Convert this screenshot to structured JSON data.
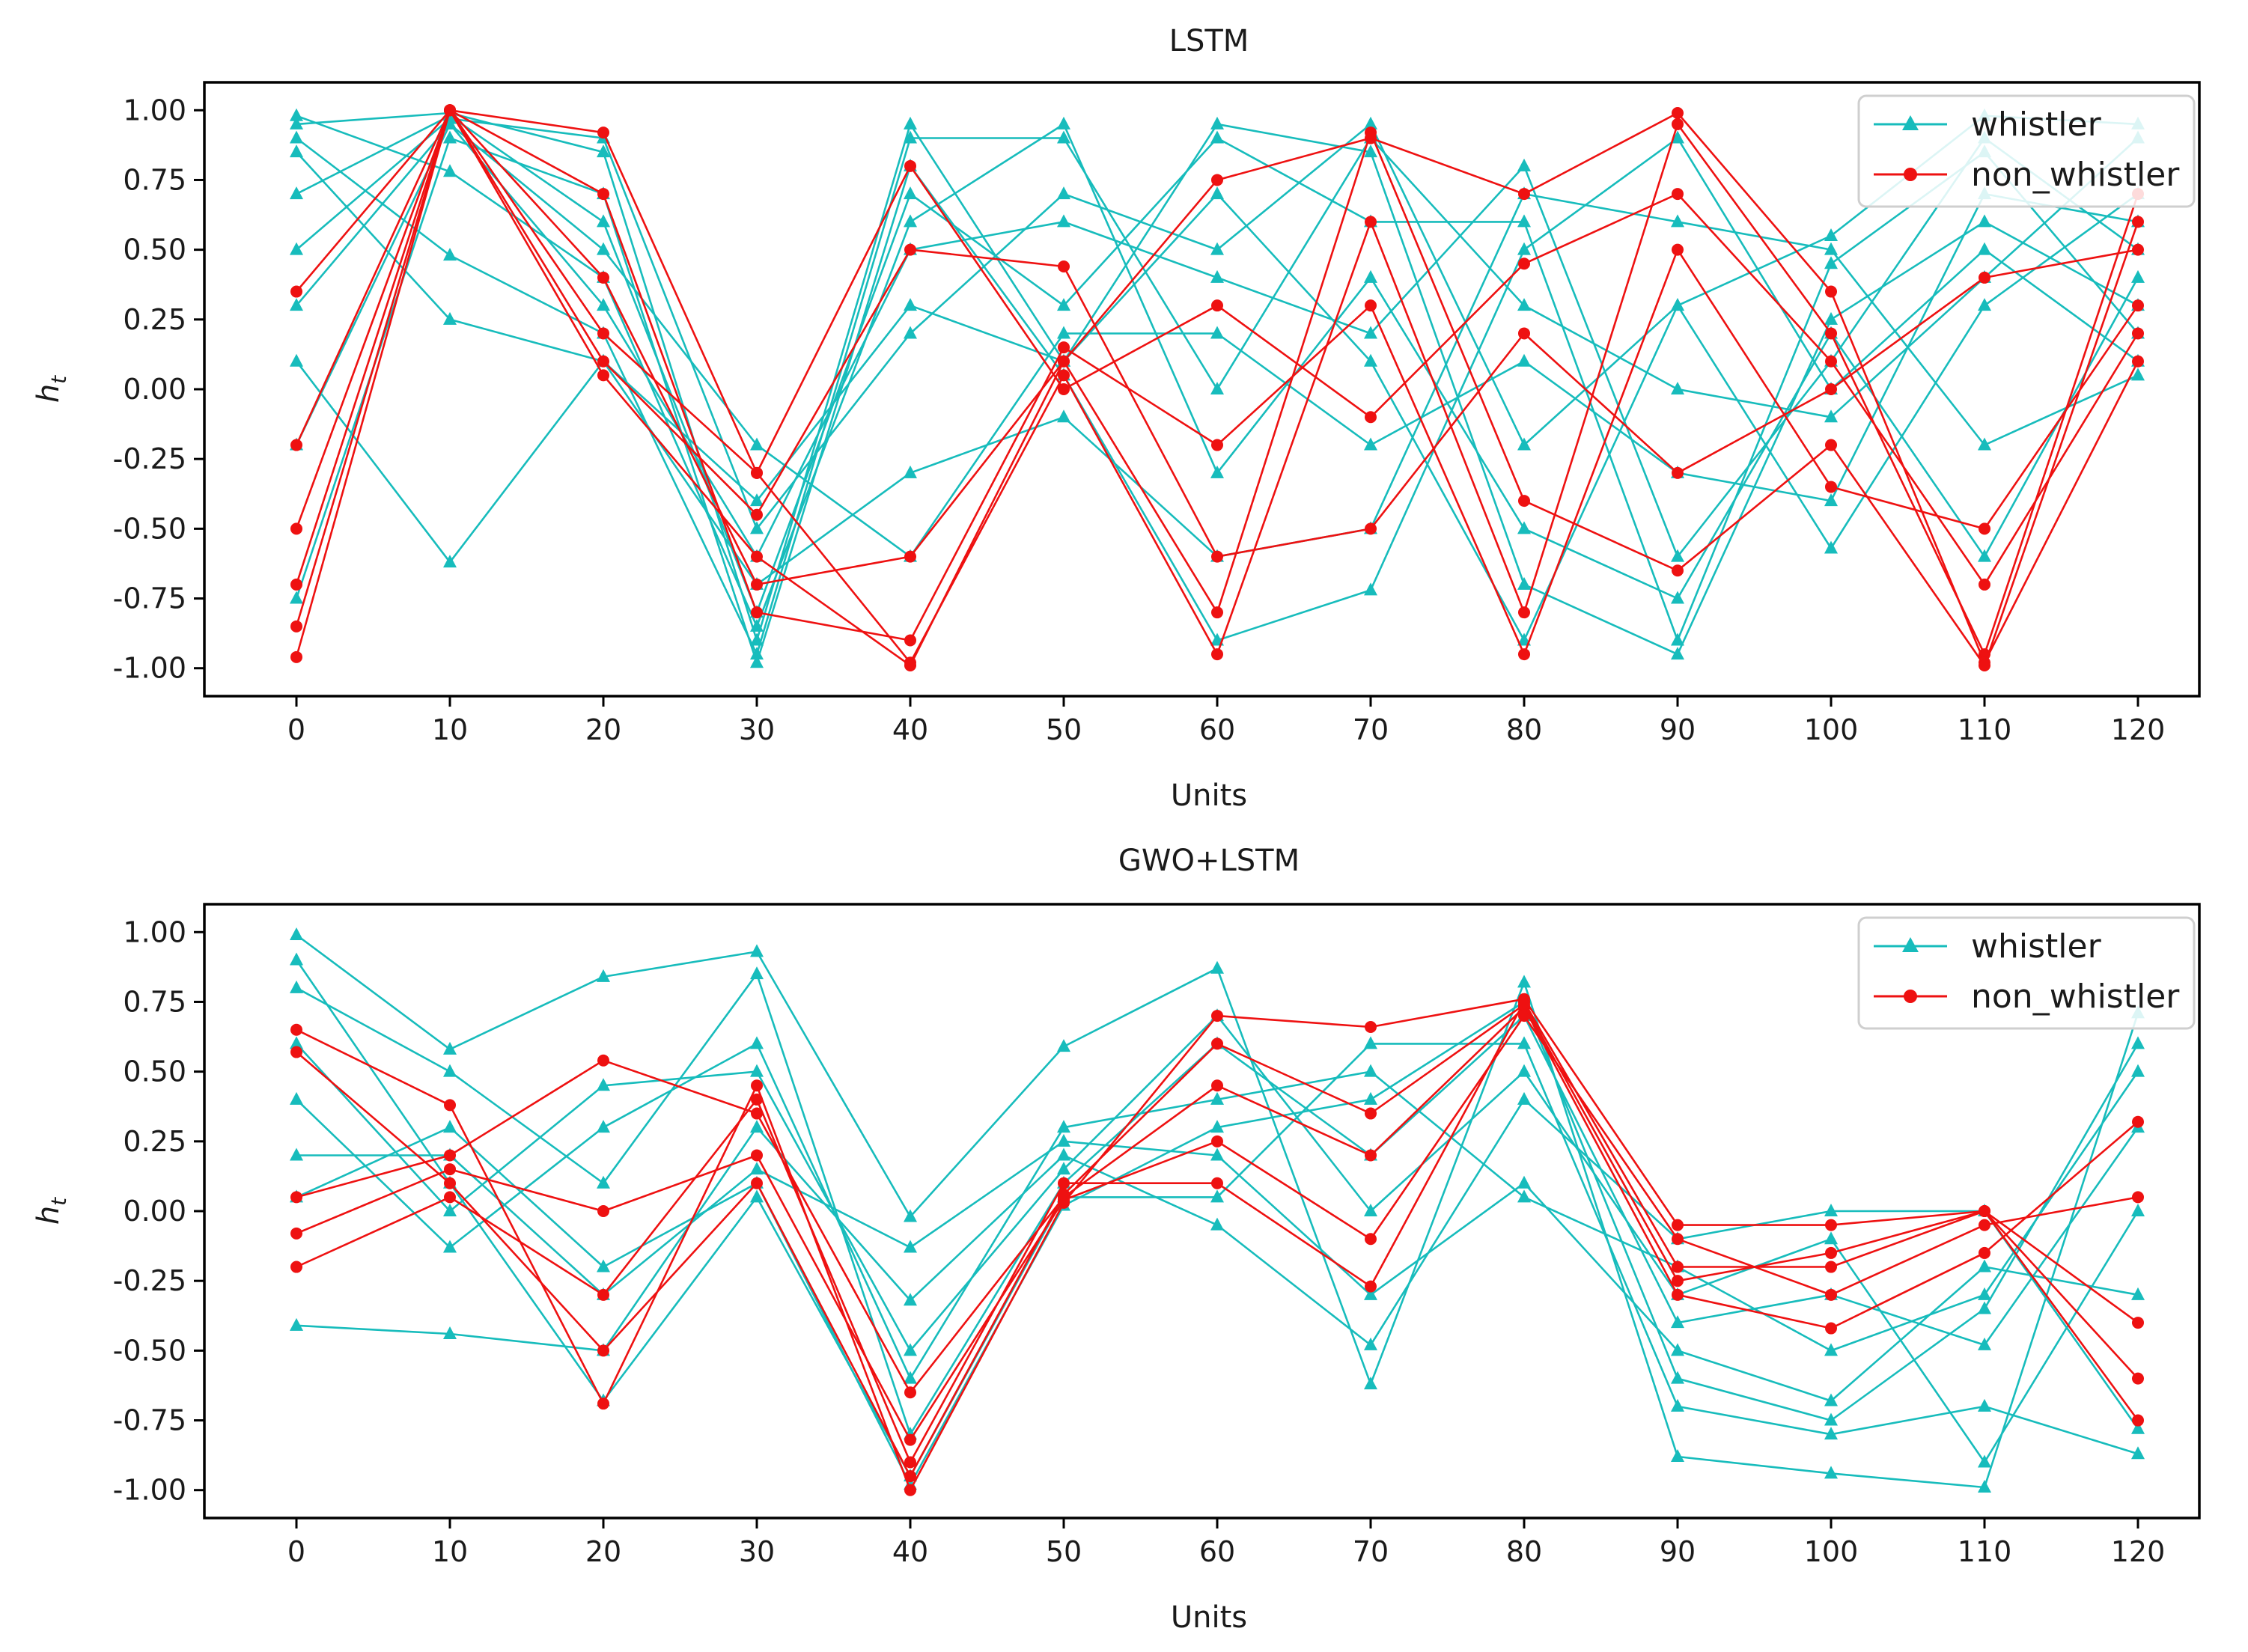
{
  "colors": {
    "whistler": "#17bcbc",
    "non_whistler": "#ee1111"
  },
  "legend": [
    "whistler",
    "non_whistler"
  ],
  "chart_data": [
    {
      "type": "line",
      "title": "LSTM",
      "xlabel": "Units",
      "ylabel_main": "h",
      "ylabel_sub": "t",
      "xlim": [
        -6,
        124
      ],
      "ylim": [
        -1.1,
        1.1
      ],
      "xticks": [
        0,
        10,
        20,
        30,
        40,
        50,
        60,
        70,
        80,
        90,
        100,
        110,
        120
      ],
      "xtick_labels": [
        "0",
        "10",
        "20",
        "30",
        "40",
        "50",
        "60",
        "70",
        "80",
        "90",
        "100",
        "110",
        "120"
      ],
      "yticks": [
        1.0,
        0.75,
        0.5,
        0.25,
        0.0,
        -0.25,
        -0.5,
        -0.75,
        -1.0
      ],
      "ytick_labels": [
        "1.00",
        "0.75",
        "0.50",
        "0.25",
        "0.00",
        "-0.25",
        "-0.50",
        "-0.75",
        "-1.00"
      ],
      "legend_position": "top-right",
      "x": [
        0,
        10,
        20,
        30,
        40,
        50,
        60,
        70,
        80,
        90,
        100,
        110,
        120
      ],
      "series": [
        {
          "name": "whistler",
          "values": [
            0.95,
            0.99,
            0.85,
            -0.9,
            0.95,
            0.1,
            0.95,
            0.85,
            -0.7,
            -0.95,
            0.25,
            0.6,
            0.3
          ]
        },
        {
          "name": "whistler",
          "values": [
            0.7,
            0.98,
            0.6,
            -0.8,
            0.7,
            0.3,
            0.9,
            0.6,
            0.6,
            -0.9,
            0.45,
            0.85,
            0.2
          ]
        },
        {
          "name": "whistler",
          "values": [
            0.3,
            0.95,
            0.3,
            -0.6,
            0.5,
            0.6,
            0.4,
            0.2,
            0.8,
            -0.6,
            0.1,
            0.9,
            0.5
          ]
        },
        {
          "name": "whistler",
          "values": [
            0.9,
            0.48,
            0.2,
            -0.95,
            0.9,
            0.9,
            0.0,
            0.9,
            0.3,
            0.0,
            -0.1,
            0.4,
            0.9
          ]
        },
        {
          "name": "whistler",
          "values": [
            0.85,
            0.25,
            0.1,
            -0.7,
            -0.3,
            -0.1,
            -0.6,
            -0.5,
            0.7,
            0.6,
            0.5,
            -0.2,
            0.05
          ]
        },
        {
          "name": "whistler",
          "values": [
            0.1,
            -0.62,
            0.1,
            -0.4,
            0.3,
            0.1,
            0.7,
            0.1,
            -0.9,
            0.3,
            -0.57,
            0.3,
            0.7
          ]
        },
        {
          "name": "whistler",
          "values": [
            -0.75,
            0.9,
            0.7,
            -0.98,
            0.8,
            0.05,
            -0.9,
            -0.72,
            0.5,
            0.9,
            0.0,
            0.5,
            0.1
          ]
        },
        {
          "name": "whistler",
          "values": [
            0.5,
            0.97,
            0.9,
            -0.5,
            0.2,
            0.7,
            0.5,
            0.95,
            -0.2,
            0.3,
            0.55,
            0.98,
            0.95
          ]
        },
        {
          "name": "whistler",
          "values": [
            -0.2,
            0.95,
            0.5,
            -0.2,
            -0.6,
            0.2,
            0.2,
            -0.2,
            0.1,
            -0.3,
            -0.4,
            0.7,
            0.6
          ]
        },
        {
          "name": "whistler",
          "values": [
            0.98,
            0.78,
            0.4,
            -0.85,
            0.6,
            0.95,
            -0.3,
            0.4,
            -0.5,
            -0.75,
            0.2,
            -0.6,
            0.4
          ]
        },
        {
          "name": "non_whistler",
          "values": [
            -0.96,
            1.0,
            0.92,
            -0.3,
            -0.98,
            0.05,
            -0.95,
            0.6,
            -0.8,
            0.95,
            0.2,
            -0.95,
            0.7
          ]
        },
        {
          "name": "non_whistler",
          "values": [
            -0.5,
            1.0,
            0.4,
            -0.7,
            -0.6,
            0.1,
            0.75,
            0.9,
            0.7,
            0.99,
            0.35,
            -0.98,
            0.1
          ]
        },
        {
          "name": "non_whistler",
          "values": [
            0.35,
            1.0,
            0.1,
            -0.45,
            0.5,
            0.44,
            -0.6,
            -0.5,
            0.2,
            -0.3,
            0.0,
            0.4,
            0.5
          ]
        },
        {
          "name": "non_whistler",
          "values": [
            -0.85,
            1.0,
            0.7,
            -0.8,
            -0.9,
            0.15,
            -0.2,
            0.3,
            -0.95,
            0.5,
            -0.35,
            -0.5,
            0.3
          ]
        },
        {
          "name": "non_whistler",
          "values": [
            -0.2,
            1.0,
            0.2,
            -0.3,
            0.8,
            0.0,
            0.3,
            -0.1,
            0.45,
            0.7,
            0.1,
            -0.7,
            0.2
          ]
        },
        {
          "name": "non_whistler",
          "values": [
            -0.7,
            1.0,
            0.05,
            -0.6,
            -0.99,
            0.1,
            -0.8,
            0.92,
            -0.4,
            -0.65,
            -0.2,
            -0.99,
            0.6
          ]
        }
      ]
    },
    {
      "type": "line",
      "title": "GWO+LSTM",
      "xlabel": "Units",
      "ylabel_main": "h",
      "ylabel_sub": "t",
      "xlim": [
        -6,
        124
      ],
      "ylim": [
        -1.1,
        1.1
      ],
      "xticks": [
        0,
        10,
        20,
        30,
        40,
        50,
        60,
        70,
        80,
        90,
        100,
        110,
        120
      ],
      "xtick_labels": [
        "0",
        "10",
        "20",
        "30",
        "40",
        "50",
        "60",
        "70",
        "80",
        "90",
        "100",
        "110",
        "120"
      ],
      "yticks": [
        1.0,
        0.75,
        0.5,
        0.25,
        0.0,
        -0.25,
        -0.5,
        -0.75,
        -1.0
      ],
      "ytick_labels": [
        "1.00",
        "0.75",
        "0.50",
        "0.25",
        "0.00",
        "-0.25",
        "-0.50",
        "-0.75",
        "-1.00"
      ],
      "legend_position": "top-right",
      "x": [
        0,
        10,
        20,
        30,
        40,
        50,
        60,
        70,
        80,
        90,
        100,
        110,
        120
      ],
      "series": [
        {
          "name": "whistler",
          "values": [
            0.99,
            0.58,
            0.84,
            0.93,
            -0.02,
            0.59,
            0.87,
            -0.62,
            0.82,
            -0.88,
            -0.94,
            -0.99,
            0.71
          ]
        },
        {
          "name": "whistler",
          "values": [
            0.9,
            0.1,
            -0.68,
            0.05,
            -0.95,
            0.05,
            0.05,
            0.6,
            0.6,
            -0.7,
            -0.8,
            -0.7,
            -0.87
          ]
        },
        {
          "name": "whistler",
          "values": [
            0.4,
            -0.13,
            0.3,
            0.6,
            -0.6,
            0.3,
            0.4,
            0.5,
            0.05,
            -0.2,
            -0.5,
            -0.3,
            0.5
          ]
        },
        {
          "name": "whistler",
          "values": [
            -0.41,
            -0.44,
            -0.5,
            0.3,
            -0.32,
            0.2,
            -0.05,
            -0.48,
            0.4,
            -0.1,
            0.0,
            0.0,
            -0.78
          ]
        },
        {
          "name": "whistler",
          "values": [
            0.8,
            0.5,
            0.1,
            0.85,
            -0.8,
            0.1,
            0.6,
            0.2,
            0.7,
            -0.4,
            -0.3,
            -0.48,
            0.3
          ]
        },
        {
          "name": "whistler",
          "values": [
            0.2,
            0.2,
            -0.3,
            0.15,
            -0.13,
            0.25,
            0.2,
            -0.3,
            0.1,
            -0.5,
            -0.68,
            -0.2,
            -0.3
          ]
        },
        {
          "name": "whistler",
          "values": [
            0.6,
            0.0,
            0.45,
            0.5,
            -0.5,
            0.15,
            0.7,
            0.0,
            0.5,
            -0.3,
            -0.1,
            -0.9,
            0.0
          ]
        },
        {
          "name": "whistler",
          "values": [
            0.05,
            0.3,
            -0.2,
            0.1,
            -0.98,
            0.02,
            0.3,
            0.4,
            0.75,
            -0.6,
            -0.75,
            -0.35,
            0.6
          ]
        },
        {
          "name": "non_whistler",
          "values": [
            0.65,
            0.38,
            -0.69,
            0.45,
            -1.0,
            0.03,
            0.7,
            0.66,
            0.76,
            -0.05,
            -0.05,
            0.0,
            -0.75
          ]
        },
        {
          "name": "non_whistler",
          "values": [
            0.05,
            0.2,
            0.54,
            0.35,
            -0.65,
            0.05,
            0.45,
            0.2,
            0.73,
            -0.3,
            -0.42,
            -0.15,
            0.32
          ]
        },
        {
          "name": "non_whistler",
          "values": [
            -0.2,
            0.05,
            -0.3,
            0.4,
            -0.9,
            0.1,
            0.1,
            -0.27,
            0.75,
            -0.2,
            -0.2,
            0.0,
            -0.4
          ]
        },
        {
          "name": "non_whistler",
          "values": [
            -0.08,
            0.15,
            0.0,
            0.2,
            -0.82,
            0.04,
            0.25,
            -0.1,
            0.7,
            -0.1,
            -0.3,
            -0.05,
            0.05
          ]
        },
        {
          "name": "non_whistler",
          "values": [
            0.57,
            0.1,
            -0.5,
            0.1,
            -0.95,
            0.06,
            0.6,
            0.35,
            0.74,
            -0.25,
            -0.15,
            0.0,
            -0.6
          ]
        }
      ]
    }
  ]
}
